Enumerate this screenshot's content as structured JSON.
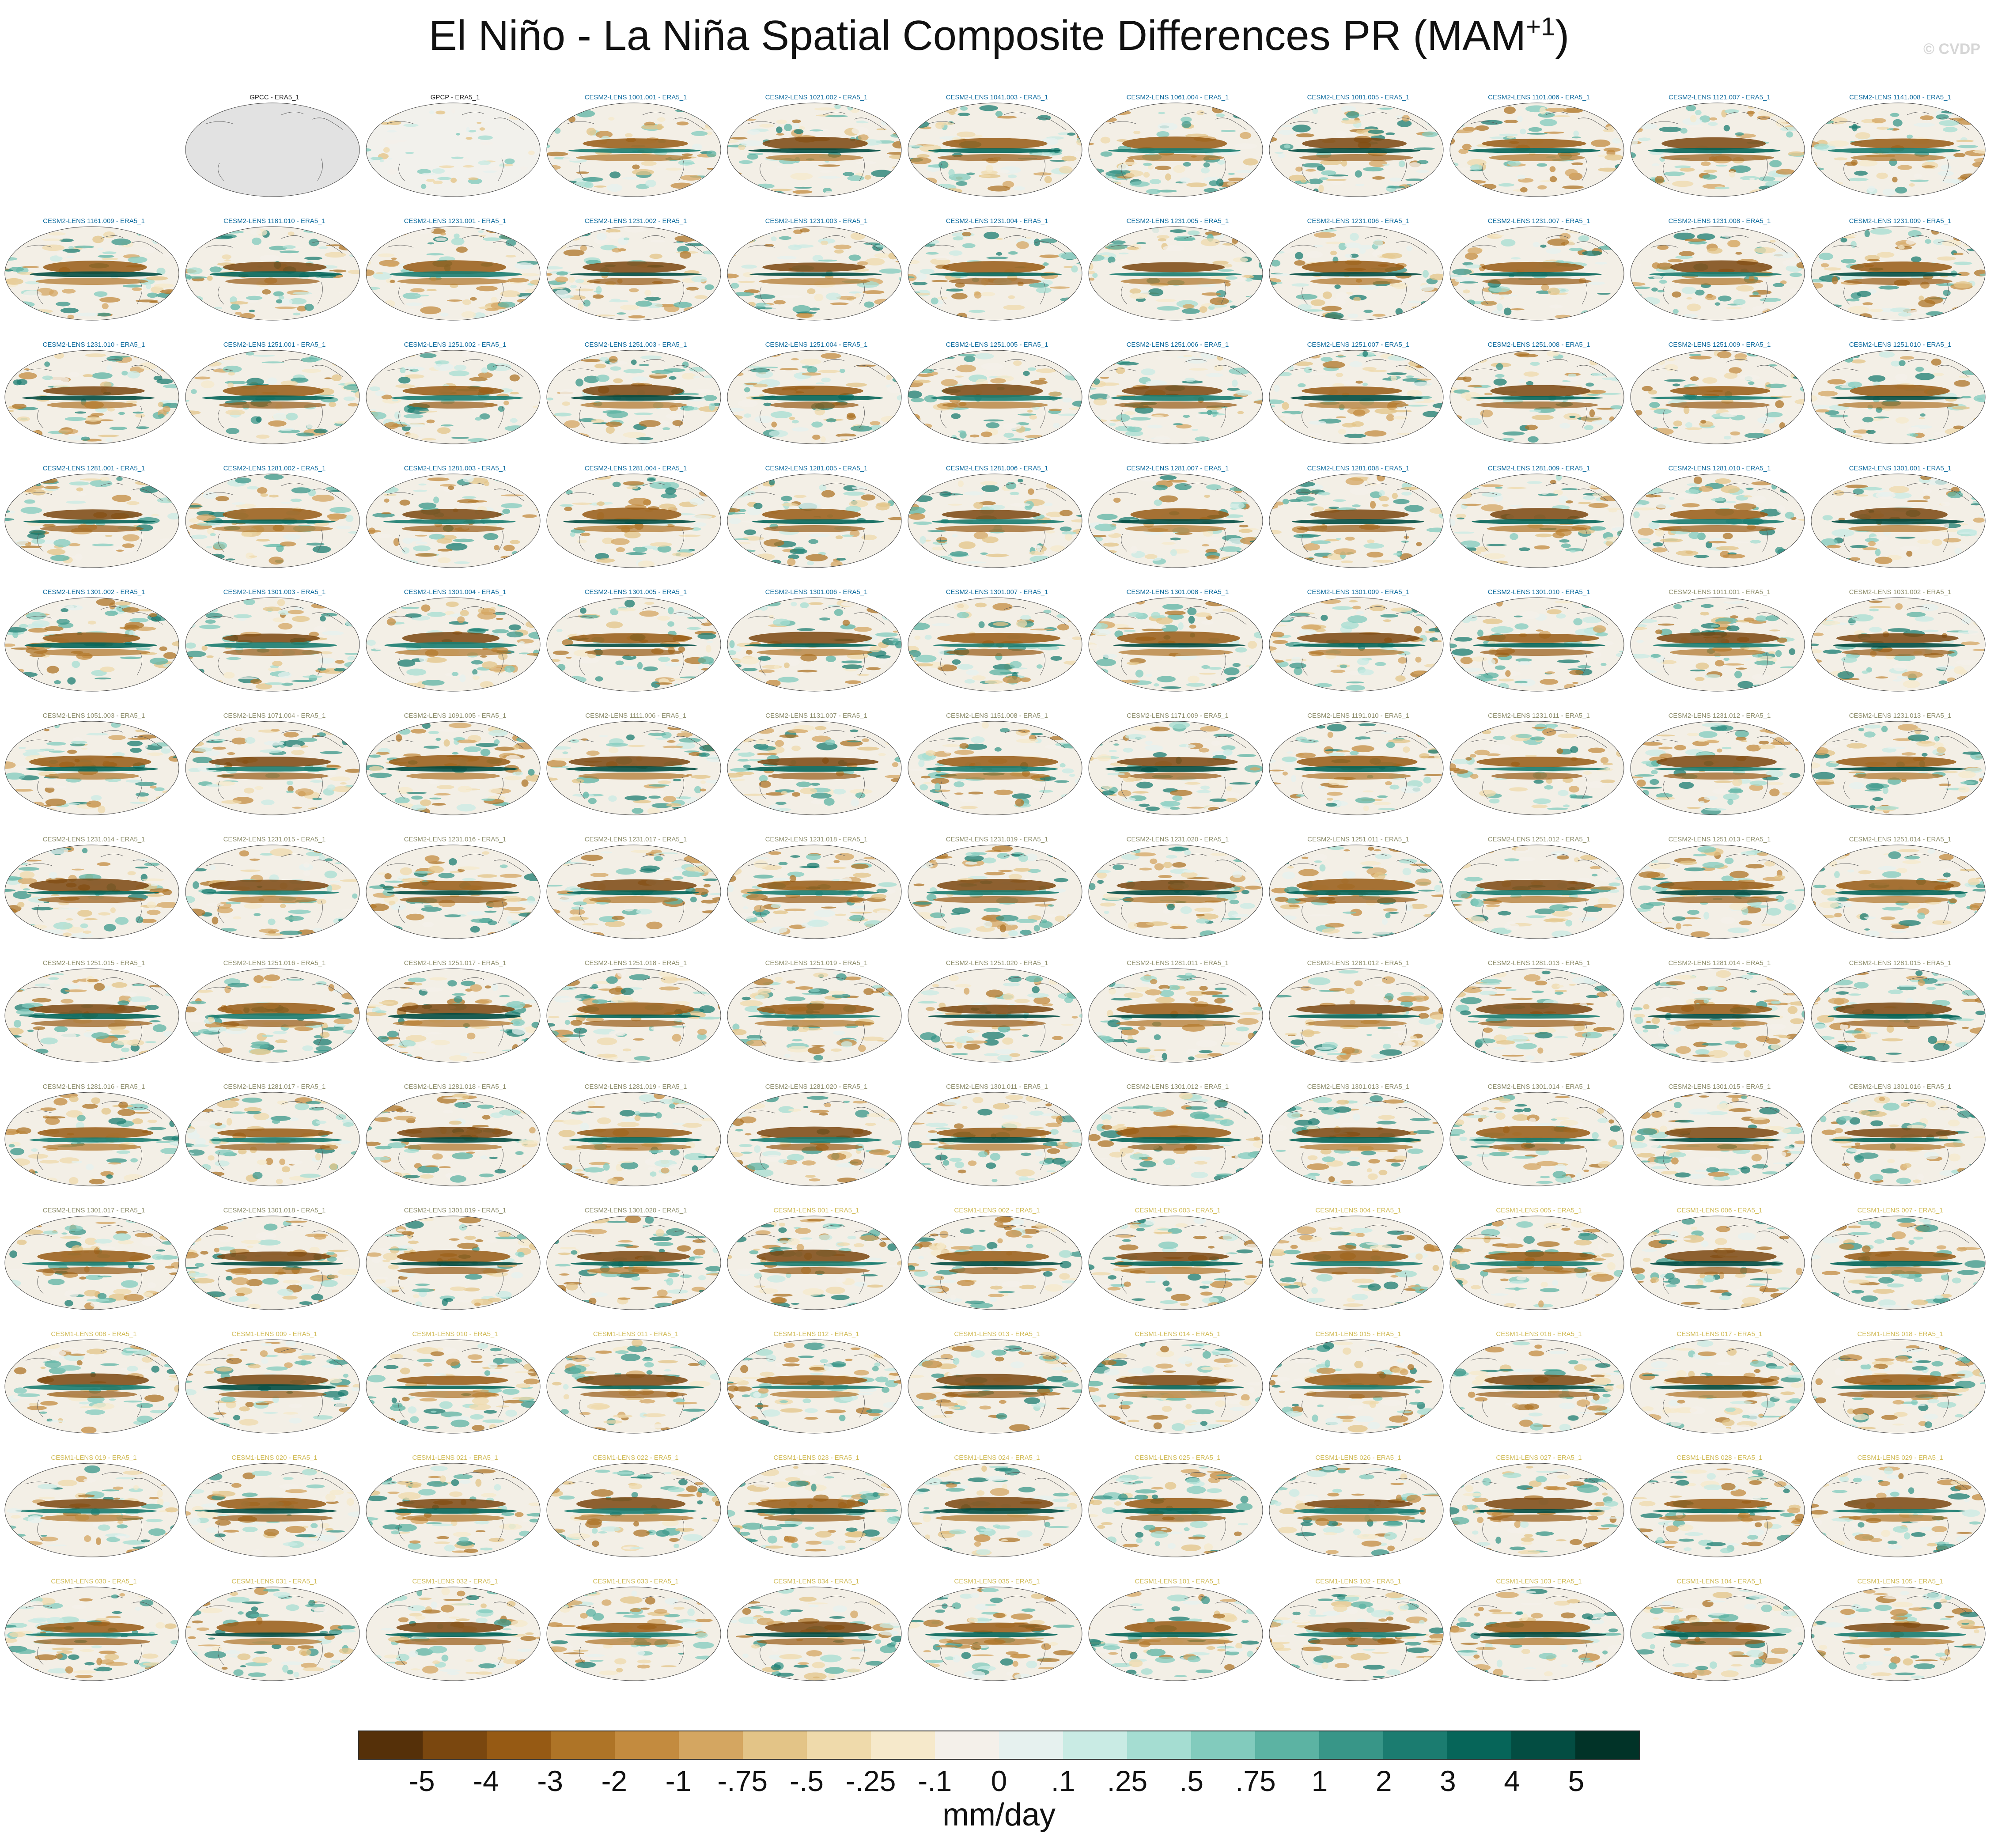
{
  "title": {
    "main": "El Niño - La Niña Spatial Composite Differences PR (MAM",
    "superscript": "+1",
    "close": ")"
  },
  "watermark": "© CVDP",
  "units": "mm/day",
  "colorbar": {
    "labels": [
      "-5",
      "-4",
      "-3",
      "-2",
      "-1",
      "-.75",
      "-.5",
      "-.25",
      "-.1",
      "0",
      ".1",
      ".25",
      ".5",
      ".75",
      "1",
      "2",
      "3",
      "4",
      "5"
    ],
    "colors": [
      "#553009",
      "#7a470f",
      "#965a14",
      "#ae7427",
      "#c38b3f",
      "#d4a661",
      "#e3c487",
      "#efdaab",
      "#f6e9cb",
      "#f4f0ea",
      "#e6f1ef",
      "#c9ebe4",
      "#a5ddd2",
      "#82cbbd",
      "#5cb3a3",
      "#389688",
      "#1b7c70",
      "#066559",
      "#034d42",
      "#013328"
    ]
  },
  "title_colors": {
    "observations": "#222222",
    "cesm2": "#0e6b9e",
    "cesm2_smbb": "#8c8c6a",
    "cesm1": "#d0ba55"
  },
  "panels": [
    {
      "label": "",
      "group": "none"
    },
    {
      "label": "GPCC - ERA5_1",
      "group": "observations"
    },
    {
      "label": "GPCP - ERA5_1",
      "group": "observations"
    },
    {
      "label": "CESM2-LENS 1001.001 - ERA5_1",
      "group": "cesm2"
    },
    {
      "label": "CESM2-LENS 1021.002 - ERA5_1",
      "group": "cesm2"
    },
    {
      "label": "CESM2-LENS 1041.003 - ERA5_1",
      "group": "cesm2"
    },
    {
      "label": "CESM2-LENS 1061.004 - ERA5_1",
      "group": "cesm2"
    },
    {
      "label": "CESM2-LENS 1081.005 - ERA5_1",
      "group": "cesm2"
    },
    {
      "label": "CESM2-LENS 1101.006 - ERA5_1",
      "group": "cesm2"
    },
    {
      "label": "CESM2-LENS 1121.007 - ERA5_1",
      "group": "cesm2"
    },
    {
      "label": "CESM2-LENS 1141.008 - ERA5_1",
      "group": "cesm2"
    },
    {
      "label": "CESM2-LENS 1161.009 - ERA5_1",
      "group": "cesm2"
    },
    {
      "label": "CESM2-LENS 1181.010 - ERA5_1",
      "group": "cesm2"
    },
    {
      "label": "CESM2-LENS 1231.001 - ERA5_1",
      "group": "cesm2"
    },
    {
      "label": "CESM2-LENS 1231.002 - ERA5_1",
      "group": "cesm2"
    },
    {
      "label": "CESM2-LENS 1231.003 - ERA5_1",
      "group": "cesm2"
    },
    {
      "label": "CESM2-LENS 1231.004 - ERA5_1",
      "group": "cesm2"
    },
    {
      "label": "CESM2-LENS 1231.005 - ERA5_1",
      "group": "cesm2"
    },
    {
      "label": "CESM2-LENS 1231.006 - ERA5_1",
      "group": "cesm2"
    },
    {
      "label": "CESM2-LENS 1231.007 - ERA5_1",
      "group": "cesm2"
    },
    {
      "label": "CESM2-LENS 1231.008 - ERA5_1",
      "group": "cesm2"
    },
    {
      "label": "CESM2-LENS 1231.009 - ERA5_1",
      "group": "cesm2"
    },
    {
      "label": "CESM2-LENS 1231.010 - ERA5_1",
      "group": "cesm2"
    },
    {
      "label": "CESM2-LENS 1251.001 - ERA5_1",
      "group": "cesm2"
    },
    {
      "label": "CESM2-LENS 1251.002 - ERA5_1",
      "group": "cesm2"
    },
    {
      "label": "CESM2-LENS 1251.003 - ERA5_1",
      "group": "cesm2"
    },
    {
      "label": "CESM2-LENS 1251.004 - ERA5_1",
      "group": "cesm2"
    },
    {
      "label": "CESM2-LENS 1251.005 - ERA5_1",
      "group": "cesm2"
    },
    {
      "label": "CESM2-LENS 1251.006 - ERA5_1",
      "group": "cesm2"
    },
    {
      "label": "CESM2-LENS 1251.007 - ERA5_1",
      "group": "cesm2"
    },
    {
      "label": "CESM2-LENS 1251.008 - ERA5_1",
      "group": "cesm2"
    },
    {
      "label": "CESM2-LENS 1251.009 - ERA5_1",
      "group": "cesm2"
    },
    {
      "label": "CESM2-LENS 1251.010 - ERA5_1",
      "group": "cesm2"
    },
    {
      "label": "CESM2-LENS 1281.001 - ERA5_1",
      "group": "cesm2"
    },
    {
      "label": "CESM2-LENS 1281.002 - ERA5_1",
      "group": "cesm2"
    },
    {
      "label": "CESM2-LENS 1281.003 - ERA5_1",
      "group": "cesm2"
    },
    {
      "label": "CESM2-LENS 1281.004 - ERA5_1",
      "group": "cesm2"
    },
    {
      "label": "CESM2-LENS 1281.005 - ERA5_1",
      "group": "cesm2"
    },
    {
      "label": "CESM2-LENS 1281.006 - ERA5_1",
      "group": "cesm2"
    },
    {
      "label": "CESM2-LENS 1281.007 - ERA5_1",
      "group": "cesm2"
    },
    {
      "label": "CESM2-LENS 1281.008 - ERA5_1",
      "group": "cesm2"
    },
    {
      "label": "CESM2-LENS 1281.009 - ERA5_1",
      "group": "cesm2"
    },
    {
      "label": "CESM2-LENS 1281.010 - ERA5_1",
      "group": "cesm2"
    },
    {
      "label": "CESM2-LENS 1301.001 - ERA5_1",
      "group": "cesm2"
    },
    {
      "label": "CESM2-LENS 1301.002 - ERA5_1",
      "group": "cesm2"
    },
    {
      "label": "CESM2-LENS 1301.003 - ERA5_1",
      "group": "cesm2"
    },
    {
      "label": "CESM2-LENS 1301.004 - ERA5_1",
      "group": "cesm2"
    },
    {
      "label": "CESM2-LENS 1301.005 - ERA5_1",
      "group": "cesm2"
    },
    {
      "label": "CESM2-LENS 1301.006 - ERA5_1",
      "group": "cesm2"
    },
    {
      "label": "CESM2-LENS 1301.007 - ERA5_1",
      "group": "cesm2"
    },
    {
      "label": "CESM2-LENS 1301.008 - ERA5_1",
      "group": "cesm2"
    },
    {
      "label": "CESM2-LENS 1301.009 - ERA5_1",
      "group": "cesm2"
    },
    {
      "label": "CESM2-LENS 1301.010 - ERA5_1",
      "group": "cesm2"
    },
    {
      "label": "CESM2-LENS 1011.001 - ERA5_1",
      "group": "cesm2_smbb"
    },
    {
      "label": "CESM2-LENS 1031.002 - ERA5_1",
      "group": "cesm2_smbb"
    },
    {
      "label": "CESM2-LENS 1051.003 - ERA5_1",
      "group": "cesm2_smbb"
    },
    {
      "label": "CESM2-LENS 1071.004 - ERA5_1",
      "group": "cesm2_smbb"
    },
    {
      "label": "CESM2-LENS 1091.005 - ERA5_1",
      "group": "cesm2_smbb"
    },
    {
      "label": "CESM2-LENS 1111.006 - ERA5_1",
      "group": "cesm2_smbb"
    },
    {
      "label": "CESM2-LENS 1131.007 - ERA5_1",
      "group": "cesm2_smbb"
    },
    {
      "label": "CESM2-LENS 1151.008 - ERA5_1",
      "group": "cesm2_smbb"
    },
    {
      "label": "CESM2-LENS 1171.009 - ERA5_1",
      "group": "cesm2_smbb"
    },
    {
      "label": "CESM2-LENS 1191.010 - ERA5_1",
      "group": "cesm2_smbb"
    },
    {
      "label": "CESM2-LENS 1231.011 - ERA5_1",
      "group": "cesm2_smbb"
    },
    {
      "label": "CESM2-LENS 1231.012 - ERA5_1",
      "group": "cesm2_smbb"
    },
    {
      "label": "CESM2-LENS 1231.013 - ERA5_1",
      "group": "cesm2_smbb"
    },
    {
      "label": "CESM2-LENS 1231.014 - ERA5_1",
      "group": "cesm2_smbb"
    },
    {
      "label": "CESM2-LENS 1231.015 - ERA5_1",
      "group": "cesm2_smbb"
    },
    {
      "label": "CESM2-LENS 1231.016 - ERA5_1",
      "group": "cesm2_smbb"
    },
    {
      "label": "CESM2-LENS 1231.017 - ERA5_1",
      "group": "cesm2_smbb"
    },
    {
      "label": "CESM2-LENS 1231.018 - ERA5_1",
      "group": "cesm2_smbb"
    },
    {
      "label": "CESM2-LENS 1231.019 - ERA5_1",
      "group": "cesm2_smbb"
    },
    {
      "label": "CESM2-LENS 1231.020 - ERA5_1",
      "group": "cesm2_smbb"
    },
    {
      "label": "CESM2-LENS 1251.011 - ERA5_1",
      "group": "cesm2_smbb"
    },
    {
      "label": "CESM2-LENS 1251.012 - ERA5_1",
      "group": "cesm2_smbb"
    },
    {
      "label": "CESM2-LENS 1251.013 - ERA5_1",
      "group": "cesm2_smbb"
    },
    {
      "label": "CESM2-LENS 1251.014 - ERA5_1",
      "group": "cesm2_smbb"
    },
    {
      "label": "CESM2-LENS 1251.015 - ERA5_1",
      "group": "cesm2_smbb"
    },
    {
      "label": "CESM2-LENS 1251.016 - ERA5_1",
      "group": "cesm2_smbb"
    },
    {
      "label": "CESM2-LENS 1251.017 - ERA5_1",
      "group": "cesm2_smbb"
    },
    {
      "label": "CESM2-LENS 1251.018 - ERA5_1",
      "group": "cesm2_smbb"
    },
    {
      "label": "CESM2-LENS 1251.019 - ERA5_1",
      "group": "cesm2_smbb"
    },
    {
      "label": "CESM2-LENS 1251.020 - ERA5_1",
      "group": "cesm2_smbb"
    },
    {
      "label": "CESM2-LENS 1281.011 - ERA5_1",
      "group": "cesm2_smbb"
    },
    {
      "label": "CESM2-LENS 1281.012 - ERA5_1",
      "group": "cesm2_smbb"
    },
    {
      "label": "CESM2-LENS 1281.013 - ERA5_1",
      "group": "cesm2_smbb"
    },
    {
      "label": "CESM2-LENS 1281.014 - ERA5_1",
      "group": "cesm2_smbb"
    },
    {
      "label": "CESM2-LENS 1281.015 - ERA5_1",
      "group": "cesm2_smbb"
    },
    {
      "label": "CESM2-LENS 1281.016 - ERA5_1",
      "group": "cesm2_smbb"
    },
    {
      "label": "CESM2-LENS 1281.017 - ERA5_1",
      "group": "cesm2_smbb"
    },
    {
      "label": "CESM2-LENS 1281.018 - ERA5_1",
      "group": "cesm2_smbb"
    },
    {
      "label": "CESM2-LENS 1281.019 - ERA5_1",
      "group": "cesm2_smbb"
    },
    {
      "label": "CESM2-LENS 1281.020 - ERA5_1",
      "group": "cesm2_smbb"
    },
    {
      "label": "CESM2-LENS 1301.011 - ERA5_1",
      "group": "cesm2_smbb"
    },
    {
      "label": "CESM2-LENS 1301.012 - ERA5_1",
      "group": "cesm2_smbb"
    },
    {
      "label": "CESM2-LENS 1301.013 - ERA5_1",
      "group": "cesm2_smbb"
    },
    {
      "label": "CESM2-LENS 1301.014 - ERA5_1",
      "group": "cesm2_smbb"
    },
    {
      "label": "CESM2-LENS 1301.015 - ERA5_1",
      "group": "cesm2_smbb"
    },
    {
      "label": "CESM2-LENS 1301.016 - ERA5_1",
      "group": "cesm2_smbb"
    },
    {
      "label": "CESM2-LENS 1301.017 - ERA5_1",
      "group": "cesm2_smbb"
    },
    {
      "label": "CESM2-LENS 1301.018 - ERA5_1",
      "group": "cesm2_smbb"
    },
    {
      "label": "CESM2-LENS 1301.019 - ERA5_1",
      "group": "cesm2_smbb"
    },
    {
      "label": "CESM2-LENS 1301.020 - ERA5_1",
      "group": "cesm2_smbb"
    },
    {
      "label": "CESM1-LENS 001 - ERA5_1",
      "group": "cesm1"
    },
    {
      "label": "CESM1-LENS 002 - ERA5_1",
      "group": "cesm1"
    },
    {
      "label": "CESM1-LENS 003 - ERA5_1",
      "group": "cesm1"
    },
    {
      "label": "CESM1-LENS 004 - ERA5_1",
      "group": "cesm1"
    },
    {
      "label": "CESM1-LENS 005 - ERA5_1",
      "group": "cesm1"
    },
    {
      "label": "CESM1-LENS 006 - ERA5_1",
      "group": "cesm1"
    },
    {
      "label": "CESM1-LENS 007 - ERA5_1",
      "group": "cesm1"
    },
    {
      "label": "CESM1-LENS 008 - ERA5_1",
      "group": "cesm1"
    },
    {
      "label": "CESM1-LENS 009 - ERA5_1",
      "group": "cesm1"
    },
    {
      "label": "CESM1-LENS 010 - ERA5_1",
      "group": "cesm1"
    },
    {
      "label": "CESM1-LENS 011 - ERA5_1",
      "group": "cesm1"
    },
    {
      "label": "CESM1-LENS 012 - ERA5_1",
      "group": "cesm1"
    },
    {
      "label": "CESM1-LENS 013 - ERA5_1",
      "group": "cesm1"
    },
    {
      "label": "CESM1-LENS 014 - ERA5_1",
      "group": "cesm1"
    },
    {
      "label": "CESM1-LENS 015 - ERA5_1",
      "group": "cesm1"
    },
    {
      "label": "CESM1-LENS 016 - ERA5_1",
      "group": "cesm1"
    },
    {
      "label": "CESM1-LENS 017 - ERA5_1",
      "group": "cesm1"
    },
    {
      "label": "CESM1-LENS 018 - ERA5_1",
      "group": "cesm1"
    },
    {
      "label": "CESM1-LENS 019 - ERA5_1",
      "group": "cesm1"
    },
    {
      "label": "CESM1-LENS 020 - ERA5_1",
      "group": "cesm1"
    },
    {
      "label": "CESM1-LENS 021 - ERA5_1",
      "group": "cesm1"
    },
    {
      "label": "CESM1-LENS 022 - ERA5_1",
      "group": "cesm1"
    },
    {
      "label": "CESM1-LENS 023 - ERA5_1",
      "group": "cesm1"
    },
    {
      "label": "CESM1-LENS 024 - ERA5_1",
      "group": "cesm1"
    },
    {
      "label": "CESM1-LENS 025 - ERA5_1",
      "group": "cesm1"
    },
    {
      "label": "CESM1-LENS 026 - ERA5_1",
      "group": "cesm1"
    },
    {
      "label": "CESM1-LENS 027 - ERA5_1",
      "group": "cesm1"
    },
    {
      "label": "CESM1-LENS 028 - ERA5_1",
      "group": "cesm1"
    },
    {
      "label": "CESM1-LENS 029 - ERA5_1",
      "group": "cesm1"
    },
    {
      "label": "CESM1-LENS 030 - ERA5_1",
      "group": "cesm1"
    },
    {
      "label": "CESM1-LENS 031 - ERA5_1",
      "group": "cesm1"
    },
    {
      "label": "CESM1-LENS 032 - ERA5_1",
      "group": "cesm1"
    },
    {
      "label": "CESM1-LENS 033 - ERA5_1",
      "group": "cesm1"
    },
    {
      "label": "CESM1-LENS 034 - ERA5_1",
      "group": "cesm1"
    },
    {
      "label": "CESM1-LENS 035 - ERA5_1",
      "group": "cesm1"
    },
    {
      "label": "CESM1-LENS 101 - ERA5_1",
      "group": "cesm1"
    },
    {
      "label": "CESM1-LENS 102 - ERA5_1",
      "group": "cesm1"
    },
    {
      "label": "CESM1-LENS 103 - ERA5_1",
      "group": "cesm1"
    },
    {
      "label": "CESM1-LENS 104 - ERA5_1",
      "group": "cesm1"
    },
    {
      "label": "CESM1-LENS 105 - ERA5_1",
      "group": "cesm1"
    }
  ],
  "chart_data": {
    "type": "heatmap",
    "projection": "robinson",
    "grid": "13 rows x 11 columns of map panels",
    "colorbar_levels": [
      -5,
      -4,
      -3,
      -2,
      -1,
      -0.75,
      -0.5,
      -0.25,
      -0.1,
      0,
      0.1,
      0.25,
      0.5,
      0.75,
      1,
      2,
      3,
      4,
      5
    ],
    "units": "mm/day"
  }
}
